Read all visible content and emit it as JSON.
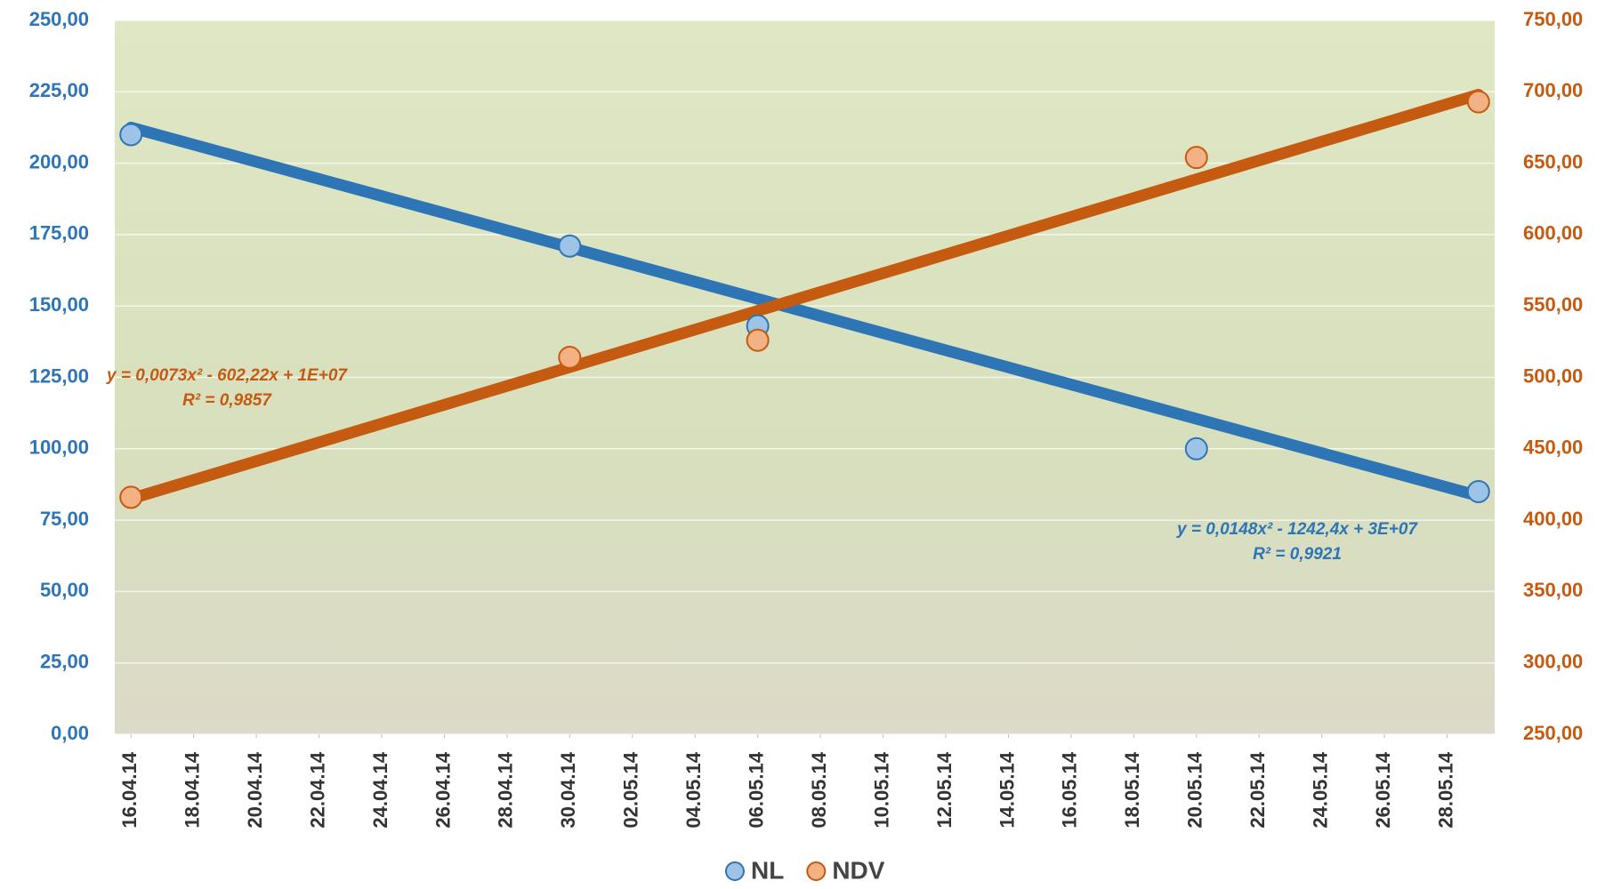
{
  "chart_data": {
    "type": "scatter",
    "x": [
      "2014-04-16",
      "2014-04-30",
      "2014-05-06",
      "2014-05-20",
      "2014-05-29"
    ],
    "xlim": [
      "2014-04-15",
      "2014-05-30"
    ],
    "xticks": [
      {
        "value": "2014-04-16",
        "label": "16.04.14"
      },
      {
        "value": "2014-04-18",
        "label": "18.04.14"
      },
      {
        "value": "2014-04-20",
        "label": "20.04.14"
      },
      {
        "value": "2014-04-22",
        "label": "22.04.14"
      },
      {
        "value": "2014-04-24",
        "label": "24.04.14"
      },
      {
        "value": "2014-04-26",
        "label": "26.04.14"
      },
      {
        "value": "2014-04-28",
        "label": "28.04.14"
      },
      {
        "value": "2014-04-30",
        "label": "30.04.14"
      },
      {
        "value": "2014-05-02",
        "label": "02.05.14"
      },
      {
        "value": "2014-05-04",
        "label": "04.05.14"
      },
      {
        "value": "2014-05-06",
        "label": "06.05.14"
      },
      {
        "value": "2014-05-08",
        "label": "08.05.14"
      },
      {
        "value": "2014-05-10",
        "label": "10.05.14"
      },
      {
        "value": "2014-05-12",
        "label": "12.05.14"
      },
      {
        "value": "2014-05-14",
        "label": "14.05.14"
      },
      {
        "value": "2014-05-16",
        "label": "16.05.14"
      },
      {
        "value": "2014-05-18",
        "label": "18.05.14"
      },
      {
        "value": "2014-05-20",
        "label": "20.05.14"
      },
      {
        "value": "2014-05-22",
        "label": "22.05.14"
      },
      {
        "value": "2014-05-24",
        "label": "24.05.14"
      },
      {
        "value": "2014-05-26",
        "label": "26.05.14"
      },
      {
        "value": "2014-05-28",
        "label": "28.05.14"
      }
    ],
    "ylim": [
      0,
      250
    ],
    "yticks": [
      {
        "value": 0,
        "label": "0,00"
      },
      {
        "value": 25,
        "label": "25,00"
      },
      {
        "value": 50,
        "label": "50,00"
      },
      {
        "value": 75,
        "label": "75,00"
      },
      {
        "value": 100,
        "label": "100,00"
      },
      {
        "value": 125,
        "label": "125,00"
      },
      {
        "value": 150,
        "label": "150,00"
      },
      {
        "value": 175,
        "label": "175,00"
      },
      {
        "value": 200,
        "label": "200,00"
      },
      {
        "value": 225,
        "label": "225,00"
      },
      {
        "value": 250,
        "label": "250,00"
      }
    ],
    "y2lim": [
      250,
      750
    ],
    "y2ticks": [
      {
        "value": 250,
        "label": "250,00"
      },
      {
        "value": 300,
        "label": "300,00"
      },
      {
        "value": 350,
        "label": "350,00"
      },
      {
        "value": 400,
        "label": "400,00"
      },
      {
        "value": 450,
        "label": "450,00"
      },
      {
        "value": 500,
        "label": "500,00"
      },
      {
        "value": 550,
        "label": "550,00"
      },
      {
        "value": 600,
        "label": "600,00"
      },
      {
        "value": 650,
        "label": "650,00"
      },
      {
        "value": 700,
        "label": "700,00"
      },
      {
        "value": 750,
        "label": "750,00"
      }
    ],
    "grid": true,
    "legend": "bottom",
    "series": [
      {
        "name": "NL",
        "color": "#2e75b6",
        "values": [
          210,
          171,
          143,
          100,
          85
        ],
        "trendline": {
          "x": [
            "2014-04-16",
            "2014-05-29"
          ],
          "values": [
            212.5,
            83.5
          ],
          "equation": "y = 0,0148x² - 1242,4x + 3E+07",
          "r2": "R² = 0,9921"
        }
      },
      {
        "name": "NDV",
        "color": "#c55a11",
        "axis": "y2",
        "values": [
          416,
          514,
          526,
          654,
          693
        ],
        "trendline": {
          "x": [
            "2014-04-16",
            "2014-05-29"
          ],
          "values": [
            415,
            698
          ],
          "equation": "y = 0,0073x² - 602,22x + 1E+07",
          "r2": "R² = 0,9857"
        }
      }
    ]
  }
}
